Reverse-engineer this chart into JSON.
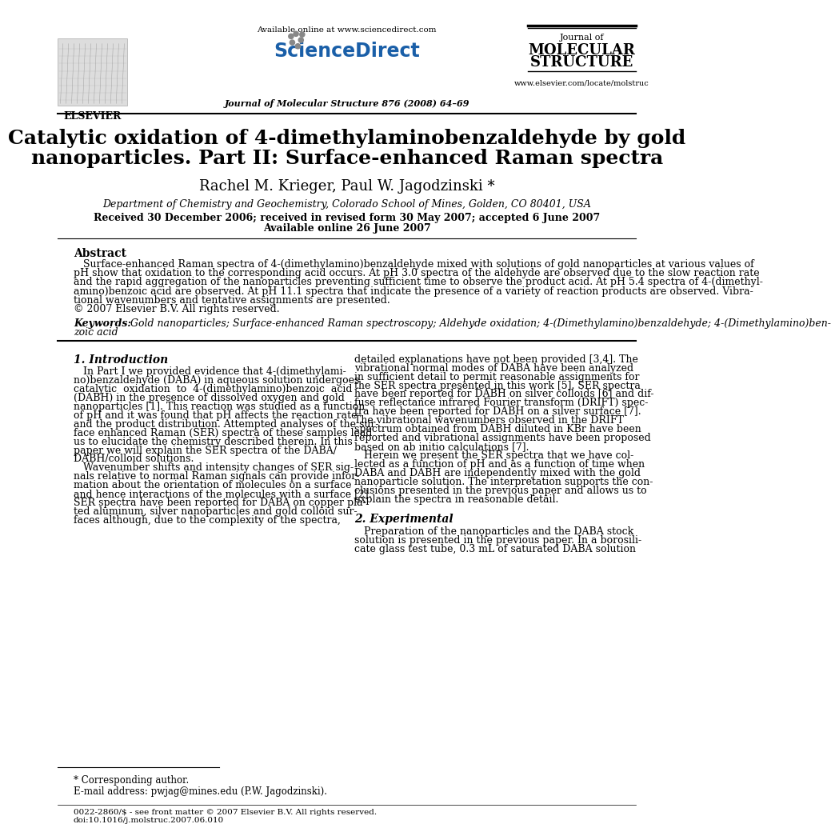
{
  "bg_color": "#ffffff",
  "title_line1": "Catalytic oxidation of 4-dimethylaminobenzaldehyde by gold",
  "title_line2": "nanoparticles. Part II: Surface-enhanced Raman spectra",
  "authors": "Rachel M. Krieger, Paul W. Jagodzinski *",
  "affiliation": "Department of Chemistry and Geochemistry, Colorado School of Mines, Golden, CO 80401, USA",
  "dates": "Received 30 December 2006; received in revised form 30 May 2007; accepted 6 June 2007",
  "available": "Available online 26 June 2007",
  "journal_top": "Journal of Molecular Structure 876 (2008) 64–69",
  "available_online": "Available online at www.sciencedirect.com",
  "sciencedirect": "ScienceDirect",
  "elsevier_text": "ELSEVIER",
  "website": "www.elsevier.com/locate/molstruc",
  "abstract_title": "Abstract",
  "keywords_label": "Keywords: ",
  "section1_title": "1. Introduction",
  "section2_title": "2. Experimental",
  "footnote_star": "* Corresponding author.",
  "footnote_email": "E-mail address: pwjag@mines.edu (P.W. Jagodzinski).",
  "bottom_text": "0022-2860/$ - see front matter © 2007 Elsevier B.V. All rights reserved.\ndoi:10.1016/j.molstruc.2007.06.010",
  "abs_line1": "   Surface-enhanced Raman spectra of 4-(dimethylamino)benzaldehyde mixed with solutions of gold nanoparticles at various values of",
  "abs_line2": "pH show that oxidation to the corresponding acid occurs. At pH 3.0 spectra of the aldehyde are observed due to the slow reaction rate",
  "abs_line3": "and the rapid aggregation of the nanoparticles preventing sufficient time to observe the product acid. At pH 5.4 spectra of 4-(dimethyl-",
  "abs_line4": "amino)benzoic acid are observed. At pH 11.1 spectra that indicate the presence of a variety of reaction products are observed. Vibra-",
  "abs_line5": "tional wavenumbers and tentative assignments are presented.",
  "abs_line6": "© 2007 Elsevier B.V. All rights reserved.",
  "kw_text": "Gold nanoparticles; Surface-enhanced Raman spectroscopy; Aldehyde oxidation; 4-(Dimethylamino)benzaldehyde; 4-(Dimethylamino)ben-",
  "kw_text2": "zoic acid",
  "left_col": "   In Part I we provided evidence that 4-(dimethylami-\nno)benzaldehyde (DABA) in aqueous solution undergoes\ncatalytic  oxidation  to  4-(dimethylamino)benzoic  acid\n(DABH) in the presence of dissolved oxygen and gold\nnanoparticles [1]. This reaction was studied as a function\nof pH and it was found that pH affects the reaction rate\nand the product distribution. Attempted analyses of the sur-\nface enhanced Raman (SER) spectra of these samples lead\nus to elucidate the chemistry described therein. In this\npaper we will explain the SER spectra of the DABA/\nDABH/colloid solutions.\n   Wavenumber shifts and intensity changes of SER sig-\nnals relative to normal Raman signals can provide infor-\nmation about the orientation of molecules on a surface\nand hence interactions of the molecules with a surface [2].\nSER spectra have been reported for DABA on copper pla-\nted aluminum, silver nanoparticles and gold colloid sur-\nfaces although, due to the complexity of the spectra,",
  "right_col": "detailed explanations have not been provided [3,4]. The\nvibrational normal modes of DABA have been analyzed\nin sufficient detail to permit reasonable assignments for\nthe SER spectra presented in this work [5]. SER spectra\nhave been reported for DABH on silver colloids [6] and dif-\nfuse reflectance infrared Fourier transform (DRIFT) spec-\ntra have been reported for DABH on a silver surface [7].\nThe vibrational wavenumbers observed in the DRIFT\nspectrum obtained from DABH diluted in KBr have been\nreported and vibrational assignments have been proposed\nbased on ab initio calculations [7].\n   Herein we present the SER spectra that we have col-\nlected as a function of pH and as a function of time when\nDABA and DABH are independently mixed with the gold\nnanoparticle solution. The interpretation supports the con-\nclusions presented in the previous paper and allows us to\nexplain the spectra in reasonable detail.",
  "sec2_text": "   Preparation of the nanoparticles and the DABA stock\nsolution is presented in the previous paper. In a borosili-\ncate glass test tube, 0.3 mL of saturated DABA solution"
}
